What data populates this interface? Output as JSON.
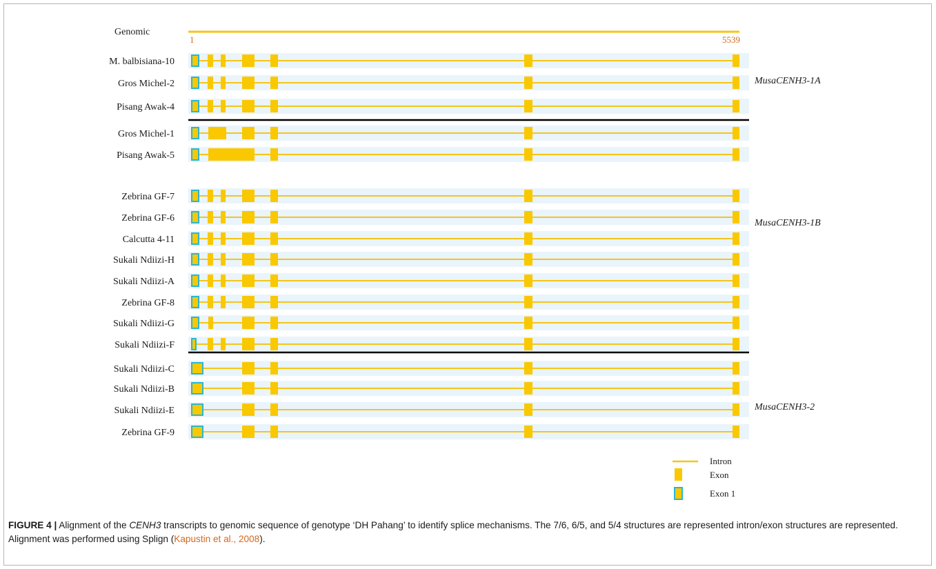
{
  "diagram": {
    "genomic": {
      "label": "Genomic",
      "start": "1",
      "end": "5539"
    },
    "colors": {
      "intron": "#f5c518",
      "exon": "#f9c800",
      "exon1_border": "#29b6d3",
      "row_band": "#eaf4fb",
      "axis_number": "#d2691e",
      "separator": "#000000"
    },
    "rows": [
      {
        "label": "M. balbisiana-10",
        "structure": "A"
      },
      {
        "label": "Gros Michel-2",
        "structure": "A"
      },
      {
        "label": "Pisang Awak-4",
        "structure": "A"
      },
      {
        "label": "Gros Michel-1",
        "structure": "B"
      },
      {
        "label": "Pisang Awak-5",
        "structure": "C"
      },
      {
        "label": "Zebrina GF-7",
        "structure": "A"
      },
      {
        "label": "Zebrina GF-6",
        "structure": "A"
      },
      {
        "label": "Calcutta 4-11",
        "structure": "A"
      },
      {
        "label": "Sukali Ndiizi-H",
        "structure": "A"
      },
      {
        "label": "Sukali Ndiizi-A",
        "structure": "A"
      },
      {
        "label": "Zebrina GF-8",
        "structure": "A"
      },
      {
        "label": "Sukali Ndiizi-G",
        "structure": "G"
      },
      {
        "label": "Sukali Ndiizi-F",
        "structure": "F"
      },
      {
        "label": "Sukali Ndiizi-C",
        "structure": "D"
      },
      {
        "label": "Sukali Ndiizi-B",
        "structure": "D"
      },
      {
        "label": "Sukali Ndiizi-E",
        "structure": "D"
      },
      {
        "label": "Zebrina GF-9",
        "structure": "D"
      }
    ],
    "group_labels": [
      "MusaCENH3-1A",
      "MusaCENH3-1B",
      "MusaCENH3-2"
    ],
    "legend": {
      "intron": "Intron",
      "exon": "Exon",
      "exon1": "Exon 1"
    }
  },
  "caption": {
    "figure_label": "FIGURE 4 |",
    "text_1": " Alignment of the ",
    "gene": "CENH3",
    "text_2": " transcripts to genomic sequence of genotype ‘DH Pahang’ to identify splice mechanisms. The 7/6, 6/5, and 5/4 structures are represented intron/exon structures are represented. Alignment was performed using Splign (",
    "citation": "Kapustin et al., 2008",
    "text_3": ")."
  }
}
